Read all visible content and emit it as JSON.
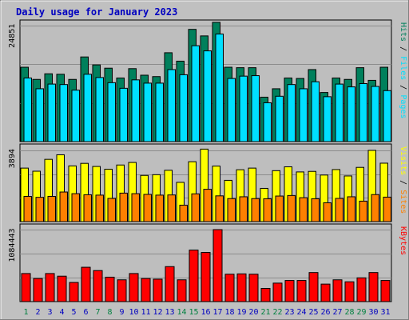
{
  "title": "Daily usage for January 2023",
  "colors": {
    "background": "#c0c0c0",
    "title": "#0000c0",
    "hits": "#00805c",
    "files": "#00e0ff",
    "sites": "#ff8000",
    "visits": "#ffff00",
    "kbytes": "#ff0000",
    "weekend_label": "#008040",
    "weekday_label": "#0000c0"
  },
  "chart_data": [
    {
      "type": "bar",
      "name": "hits-files",
      "series": [
        {
          "name": "Hits",
          "values": [
            15900,
            13300,
            14500,
            14400,
            13300,
            18100,
            16400,
            15700,
            13600,
            15600,
            14200,
            13900,
            19000,
            17200,
            24000,
            22600,
            25500,
            15900,
            15800,
            15800,
            9500,
            11300,
            13600,
            13500,
            15400,
            10500,
            13600,
            13300,
            15800,
            13100,
            15900
          ]
        },
        {
          "name": "Files",
          "values": [
            13600,
            11300,
            12300,
            12200,
            11000,
            14400,
            13700,
            12600,
            11400,
            13200,
            12500,
            12500,
            15400,
            14300,
            20500,
            19400,
            23000,
            13500,
            14000,
            14100,
            8300,
            9700,
            12200,
            11300,
            12800,
            9600,
            12300,
            11700,
            12400,
            11800,
            10900
          ]
        }
      ],
      "ymax_label": "24851",
      "ylim": [
        0,
        26000
      ],
      "legend": [
        "Pages",
        "Files",
        "Hits"
      ]
    },
    {
      "type": "bar",
      "name": "visits-sites",
      "series": [
        {
          "name": "Visits",
          "values": [
            2930,
            2760,
            3410,
            3660,
            3050,
            3190,
            3020,
            2870,
            3100,
            3240,
            2530,
            2570,
            2810,
            2150,
            3280,
            3970,
            3040,
            2260,
            2840,
            2930,
            1820,
            2790,
            3000,
            2720,
            2750,
            2550,
            2850,
            2500,
            2970,
            3900,
            3200
          ]
        },
        {
          "name": "Sites",
          "values": [
            1380,
            1330,
            1380,
            1620,
            1530,
            1470,
            1450,
            1270,
            1560,
            1530,
            1490,
            1450,
            1460,
            900,
            1520,
            1770,
            1410,
            1260,
            1360,
            1260,
            1250,
            1400,
            1430,
            1310,
            1250,
            1030,
            1270,
            1360,
            1120,
            1480,
            1340
          ]
        }
      ],
      "ymax_label": "3894",
      "ylim": [
        0,
        4250
      ],
      "legend": [
        "Sites",
        "Visits"
      ]
    },
    {
      "type": "bar",
      "name": "kbytes",
      "series": [
        {
          "name": "KBytes",
          "values": [
            425000,
            350000,
            425000,
            385000,
            290000,
            520000,
            470000,
            370000,
            330000,
            425000,
            350000,
            340000,
            530000,
            330000,
            780000,
            745000,
            1090000,
            415000,
            420000,
            415000,
            200000,
            280000,
            320000,
            320000,
            440000,
            265000,
            330000,
            300000,
            360000,
            440000,
            320000
          ]
        }
      ],
      "ymax_label": "1084443",
      "ylim": [
        0,
        1175000
      ],
      "legend": [
        "KBytes"
      ]
    }
  ],
  "days": [
    "1",
    "2",
    "3",
    "4",
    "5",
    "6",
    "7",
    "8",
    "9",
    "10",
    "11",
    "12",
    "13",
    "14",
    "15",
    "16",
    "17",
    "18",
    "19",
    "20",
    "21",
    "22",
    "23",
    "24",
    "25",
    "26",
    "27",
    "28",
    "29",
    "30",
    "31"
  ],
  "weekend_days": [
    1,
    7,
    8,
    14,
    15,
    21,
    22,
    28,
    29
  ]
}
